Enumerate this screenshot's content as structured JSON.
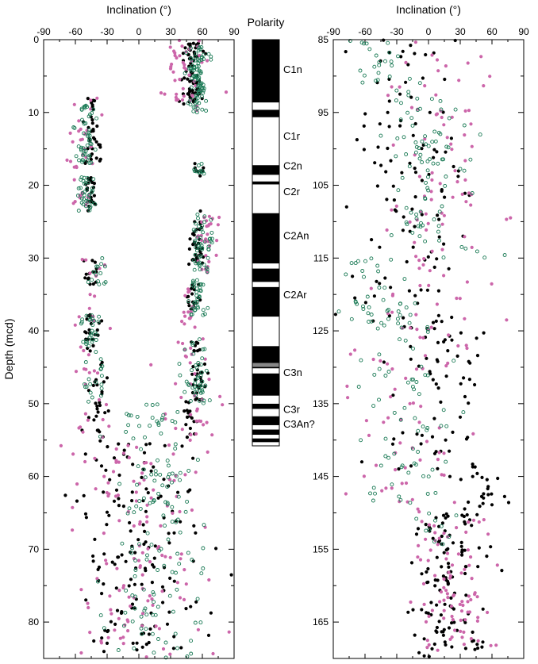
{
  "chart_data": [
    {
      "type": "scatter",
      "panel": "left",
      "xlabel": "Inclination (°)",
      "ylabel": "Depth (mcd)",
      "xlim": [
        -90,
        90
      ],
      "ylim": [
        0,
        85
      ],
      "y_inverted": true,
      "xticks": [
        -90,
        -60,
        -30,
        0,
        30,
        60,
        90
      ],
      "yticks": [
        0,
        10,
        20,
        30,
        40,
        50,
        60,
        70,
        80
      ],
      "colors": {
        "filled_black": "#000000",
        "filled_pink": "#cc66aa",
        "open_green": "#1a7a55"
      },
      "series": [
        {
          "marker": "filled-black",
          "clusters": [
            {
              "ymin": 0.5,
              "ymax": 9,
              "x": 50,
              "spread": 10,
              "n": 70
            },
            {
              "ymin": 8,
              "ymax": 17,
              "x": -45,
              "spread": 8,
              "n": 35
            },
            {
              "ymin": 17,
              "ymax": 19,
              "x": 55,
              "spread": 6,
              "n": 8
            },
            {
              "ymin": 18.5,
              "ymax": 23.5,
              "x": -45,
              "spread": 7,
              "n": 25
            },
            {
              "ymin": 23.5,
              "ymax": 31,
              "x": 55,
              "spread": 8,
              "n": 35
            },
            {
              "ymin": 30,
              "ymax": 34,
              "x": -45,
              "spread": 8,
              "n": 14
            },
            {
              "ymin": 33.5,
              "ymax": 37.5,
              "x": 50,
              "spread": 8,
              "n": 18
            },
            {
              "ymin": 37.5,
              "ymax": 41.5,
              "x": -45,
              "spread": 8,
              "n": 20
            },
            {
              "ymin": 41.5,
              "ymax": 49.5,
              "x": 55,
              "spread": 8,
              "n": 35
            },
            {
              "ymin": 42,
              "ymax": 49,
              "x": -40,
              "spread": 10,
              "n": 15
            },
            {
              "ymin": 49.5,
              "ymax": 55,
              "x": -40,
              "spread": 12,
              "n": 16
            },
            {
              "ymin": 49.5,
              "ymax": 55,
              "x": 50,
              "spread": 10,
              "n": 16
            },
            {
              "ymin": 55,
              "ymax": 85,
              "x": 0,
              "spread": 55,
              "n": 150
            }
          ]
        },
        {
          "marker": "filled-pink",
          "clusters": [
            {
              "ymin": 0,
              "ymax": 10,
              "x": 40,
              "spread": 25,
              "n": 45
            },
            {
              "ymin": 8,
              "ymax": 24,
              "x": -55,
              "spread": 15,
              "n": 35
            },
            {
              "ymin": 24,
              "ymax": 32,
              "x": 65,
              "spread": 12,
              "n": 30
            },
            {
              "ymin": 30,
              "ymax": 40,
              "x": -40,
              "spread": 20,
              "n": 15
            },
            {
              "ymin": 34,
              "ymax": 40,
              "x": 45,
              "spread": 10,
              "n": 15
            },
            {
              "ymin": 41,
              "ymax": 55,
              "x": 50,
              "spread": 25,
              "n": 35
            },
            {
              "ymin": 42,
              "ymax": 55,
              "x": -45,
              "spread": 20,
              "n": 20
            },
            {
              "ymin": 55,
              "ymax": 85,
              "x": 0,
              "spread": 60,
              "n": 130
            }
          ]
        },
        {
          "marker": "open-green",
          "clusters": [
            {
              "ymin": 1,
              "ymax": 10,
              "x": 55,
              "spread": 10,
              "n": 90
            },
            {
              "ymin": 9,
              "ymax": 17,
              "x": -50,
              "spread": 10,
              "n": 50
            },
            {
              "ymin": 17,
              "ymax": 18.5,
              "x": 55,
              "spread": 6,
              "n": 10
            },
            {
              "ymin": 18.5,
              "ymax": 23.5,
              "x": -50,
              "spread": 8,
              "n": 35
            },
            {
              "ymin": 24,
              "ymax": 32,
              "x": 60,
              "spread": 10,
              "n": 50
            },
            {
              "ymin": 30,
              "ymax": 34,
              "x": -40,
              "spread": 15,
              "n": 15
            },
            {
              "ymin": 33,
              "ymax": 38,
              "x": 55,
              "spread": 10,
              "n": 35
            },
            {
              "ymin": 37.5,
              "ymax": 42,
              "x": -45,
              "spread": 10,
              "n": 25
            },
            {
              "ymin": 41,
              "ymax": 50,
              "x": 55,
              "spread": 12,
              "n": 45
            },
            {
              "ymin": 42,
              "ymax": 50,
              "x": -40,
              "spread": 12,
              "n": 20
            },
            {
              "ymin": 50,
              "ymax": 55,
              "x": 10,
              "spread": 45,
              "n": 25
            },
            {
              "ymin": 55,
              "ymax": 85,
              "x": 15,
              "spread": 45,
              "n": 120
            }
          ]
        }
      ]
    },
    {
      "type": "scatter",
      "panel": "right",
      "xlabel": "Inclination (°)",
      "xlim": [
        -90,
        90
      ],
      "ylim": [
        85,
        170
      ],
      "y_inverted": true,
      "xticks": [
        -90,
        -60,
        -30,
        0,
        30,
        60,
        90
      ],
      "yticks": [
        85,
        95,
        105,
        115,
        125,
        135,
        145,
        155,
        165
      ],
      "series": [
        {
          "marker": "filled-black",
          "clusters": [
            {
              "ymin": 85,
              "ymax": 100,
              "x": -30,
              "spread": 55,
              "n": 40
            },
            {
              "ymin": 100,
              "ymax": 125,
              "x": -10,
              "spread": 55,
              "n": 80
            },
            {
              "ymin": 125,
              "ymax": 145,
              "x": 10,
              "spread": 55,
              "n": 60
            },
            {
              "ymin": 145,
              "ymax": 150,
              "x": 50,
              "spread": 25,
              "n": 20
            },
            {
              "ymin": 150,
              "ymax": 170,
              "x": 20,
              "spread": 35,
              "n": 120
            }
          ]
        },
        {
          "marker": "filled-pink",
          "clusters": [
            {
              "ymin": 85,
              "ymax": 125,
              "x": 10,
              "spread": 60,
              "n": 100
            },
            {
              "ymin": 125,
              "ymax": 150,
              "x": -20,
              "spread": 55,
              "n": 60
            },
            {
              "ymin": 150,
              "ymax": 170,
              "x": 25,
              "spread": 40,
              "n": 90
            }
          ]
        },
        {
          "marker": "open-green",
          "clusters": [
            {
              "ymin": 85,
              "ymax": 92,
              "x": -50,
              "spread": 30,
              "n": 25
            },
            {
              "ymin": 92,
              "ymax": 115,
              "x": 5,
              "spread": 40,
              "n": 90
            },
            {
              "ymin": 115,
              "ymax": 125,
              "x": -50,
              "spread": 25,
              "n": 30
            },
            {
              "ymin": 120,
              "ymax": 150,
              "x": -20,
              "spread": 45,
              "n": 80
            },
            {
              "ymin": 150,
              "ymax": 155,
              "x": 0,
              "spread": 30,
              "n": 10
            }
          ]
        }
      ]
    },
    {
      "type": "polarity-column",
      "title": "Polarity",
      "depth_range": [
        0,
        55
      ],
      "colors": {
        "normal": "#000000",
        "reversed": "#ffffff",
        "uncertain": "#888888"
      },
      "normal_intervals": [
        [
          0,
          8.5
        ],
        [
          9.5,
          10.5
        ],
        [
          17,
          18.3
        ],
        [
          19.2,
          19.6
        ],
        [
          23.5,
          30.3
        ],
        [
          31,
          32.8
        ],
        [
          33.5,
          37.5
        ],
        [
          41.5,
          43.8
        ],
        [
          44.3,
          44.5
        ],
        [
          45.2,
          48.2
        ],
        [
          49.3,
          50
        ],
        [
          51,
          52.2
        ],
        [
          52.8,
          53.5
        ],
        [
          54,
          54.5
        ]
      ],
      "uncertain_intervals": [
        [
          43.8,
          44.3
        ]
      ],
      "chrons": [
        {
          "label": "C1n",
          "depth": 4
        },
        {
          "label": "C1r",
          "depth": 13
        },
        {
          "label": "C2n",
          "depth": 17
        },
        {
          "label": "C2r",
          "depth": 20.5
        },
        {
          "label": "C2An",
          "depth": 26.5
        },
        {
          "label": "C2Ar",
          "depth": 34.5
        },
        {
          "label": "C3n",
          "depth": 45
        },
        {
          "label": "C3r",
          "depth": 50
        },
        {
          "label": "C3An?",
          "depth": 52
        }
      ]
    }
  ]
}
